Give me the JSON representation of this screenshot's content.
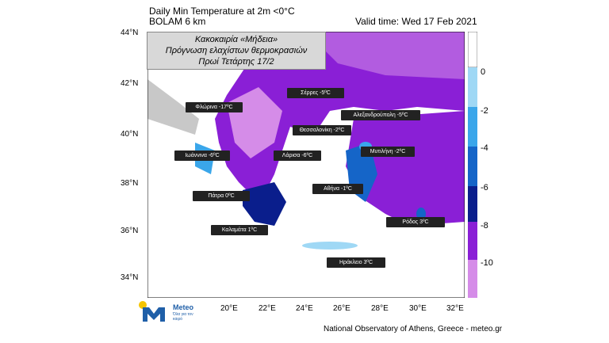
{
  "header": {
    "title": "Daily Min Temperature at 2m <0°C",
    "model": "BOLAM 6 km",
    "valid_time": "Valid time: Wed 17 Feb 2021"
  },
  "infobox": {
    "line1": "Κακοκαιρία «Μήδεια»",
    "line2": "Πρόγνωση ελαχίστων θερμοκρασιών",
    "line3": "Πρωί Τετάρτης 17/2"
  },
  "axes": {
    "y_ticks": [
      "44°N",
      "42°N",
      "40°N",
      "38°N",
      "36°N",
      "34°N"
    ],
    "x_ticks": [
      "20°E",
      "22°E",
      "24°E",
      "26°E",
      "28°E",
      "30°E",
      "32°E"
    ]
  },
  "cities": [
    {
      "label": "Σέρρες -5ºC"
    },
    {
      "label": "Φλώρινα -17ºC"
    },
    {
      "label": "Αλεξανδρούπολη -5ºC"
    },
    {
      "label": "Θεσσαλονίκη -2ºC"
    },
    {
      "label": "Ιωάννινα -6ºC"
    },
    {
      "label": "Λάρισα -6ºC"
    },
    {
      "label": "Μυτιλήνη -2ºC"
    },
    {
      "label": "Αθήνα -1ºC"
    },
    {
      "label": "Πάτρα 0ºC"
    },
    {
      "label": "Ρόδος 3ºC"
    },
    {
      "label": "Καλαμάτα 1ºC"
    },
    {
      "label": "Ηράκλειο 3ºC"
    }
  ],
  "colorbar": {
    "labels": [
      "0",
      "-2",
      "-4",
      "-6",
      "-8",
      "-10"
    ],
    "colors": [
      "#ffffff",
      "#9fd8f5",
      "#3aa6ea",
      "#1565c8",
      "#0a1e8c",
      "#1a0b6e",
      "#8a1fd6",
      "#b25ce0",
      "#d58ce8"
    ]
  },
  "logo": {
    "name": "Meteo",
    "tagline": "Όλα για τον καιρό"
  },
  "credit": "National Observatory of Athens, Greece - meteo.gr"
}
